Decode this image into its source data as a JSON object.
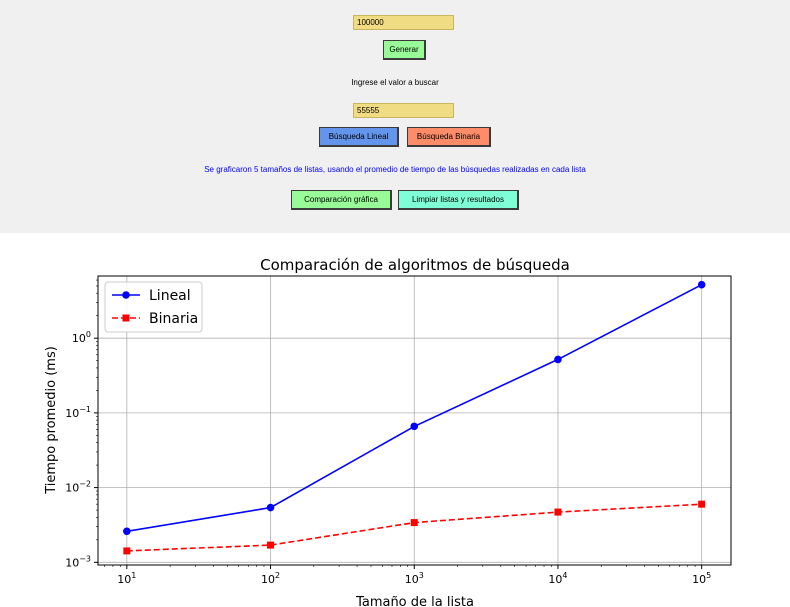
{
  "form": {
    "size_input_value": "100000",
    "generate_label": "Generar",
    "search_prompt": "Ingrese el valor a buscar",
    "search_input_value": "55555",
    "linear_search_label": "Búsqueda Lineal",
    "binary_search_label": "Búsqueda Binaria",
    "info_text": "Se graficaron 5 tamaños de listas, usando el promedio de tiempo de las búsquedas realizadas en cada lista",
    "compare_label": "Comparación gráfica",
    "clear_label": "Limpiar listas y resultados"
  },
  "colors": {
    "panel_bg": "#f0f0f0",
    "entry_bg": "#f0dc82",
    "generate_bg": "#98fb98",
    "linear_bg": "#6495ed",
    "binary_bg": "#ff8c69",
    "compare_bg": "#98fb98",
    "clear_bg": "#7fffd4",
    "info_text": "#0000ff"
  },
  "chart_data": {
    "type": "line",
    "title": "Comparación de algoritmos de búsqueda",
    "xlabel": "Tamaño de la lista",
    "ylabel": "Tiempo promedio (ms)",
    "x": [
      10,
      100,
      1000,
      10000,
      100000
    ],
    "xscale": "log",
    "yscale": "log",
    "xlim": [
      6.3,
      160000
    ],
    "ylim": [
      0.00092,
      6.8
    ],
    "x_ticks": [
      {
        "value": 10,
        "base": "10",
        "exp": "1"
      },
      {
        "value": 100,
        "base": "10",
        "exp": "2"
      },
      {
        "value": 1000,
        "base": "10",
        "exp": "3"
      },
      {
        "value": 10000,
        "base": "10",
        "exp": "4"
      },
      {
        "value": 100000,
        "base": "10",
        "exp": "5"
      }
    ],
    "y_ticks": [
      {
        "value": 0.001,
        "base": "10",
        "exp": "−3"
      },
      {
        "value": 0.01,
        "base": "10",
        "exp": "−2"
      },
      {
        "value": 0.1,
        "base": "10",
        "exp": "−1"
      },
      {
        "value": 1,
        "base": "10",
        "exp": "0"
      }
    ],
    "grid": true,
    "legend_position": "top-left",
    "series": [
      {
        "name": "Lineal",
        "values": [
          0.0026,
          0.0054,
          0.066,
          0.52,
          5.2
        ],
        "color": "#0000ff",
        "marker": "circle",
        "linestyle": "solid"
      },
      {
        "name": "Binaria",
        "values": [
          0.00142,
          0.0017,
          0.0034,
          0.0047,
          0.006
        ],
        "color": "#ff0000",
        "marker": "square",
        "linestyle": "dashed"
      }
    ]
  }
}
